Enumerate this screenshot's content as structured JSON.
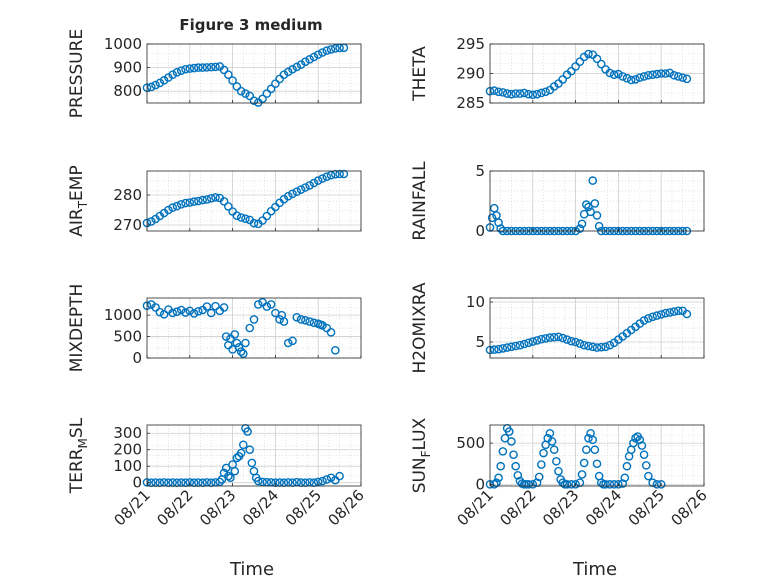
{
  "figure": {
    "title": "Figure 3 medium",
    "xlabel": "Time"
  },
  "colors": {
    "marker": "#0072BD",
    "axis": "#262626",
    "grid": "#d9d9d9",
    "background": "#ffffff"
  },
  "chart_data": [
    {
      "type": "scatter",
      "ylabel": "PRESSURE",
      "ylim": [
        750,
        1000
      ],
      "yticks": [
        800,
        900,
        1000
      ],
      "xlim": [
        "08/21",
        "08/26"
      ],
      "xticks": [
        "08/21",
        "08/22",
        "08/23",
        "08/24",
        "08/25",
        "08/26"
      ],
      "grid": true,
      "x": [
        0,
        0.1,
        0.2,
        0.3,
        0.4,
        0.5,
        0.6,
        0.7,
        0.8,
        0.9,
        1.0,
        1.1,
        1.2,
        1.3,
        1.4,
        1.5,
        1.6,
        1.7,
        1.8,
        1.9,
        2.0,
        2.1,
        2.2,
        2.3,
        2.4,
        2.5,
        2.6,
        2.7,
        2.8,
        2.9,
        3.0,
        3.1,
        3.2,
        3.3,
        3.4,
        3.5,
        3.6,
        3.7,
        3.8,
        3.9,
        4.0,
        4.1,
        4.2,
        4.3,
        4.4,
        4.5,
        4.6
      ],
      "y": [
        815,
        818,
        826,
        835,
        846,
        858,
        870,
        880,
        887,
        893,
        896,
        898,
        900,
        900,
        901,
        902,
        903,
        905,
        890,
        870,
        845,
        820,
        800,
        790,
        780,
        760,
        752,
        768,
        790,
        810,
        832,
        852,
        870,
        882,
        893,
        903,
        913,
        925,
        935,
        945,
        955,
        964,
        972,
        977,
        981,
        983,
        984
      ]
    },
    {
      "type": "scatter",
      "ylabel": "THETA",
      "ylim": [
        285,
        295
      ],
      "yticks": [
        285,
        290,
        295
      ],
      "xlim": [
        "08/21",
        "08/26"
      ],
      "xticks": [
        "08/21",
        "08/22",
        "08/23",
        "08/24",
        "08/25",
        "08/26"
      ],
      "grid": true,
      "x": [
        0,
        0.1,
        0.2,
        0.3,
        0.4,
        0.5,
        0.6,
        0.7,
        0.8,
        0.9,
        1.0,
        1.1,
        1.2,
        1.3,
        1.4,
        1.5,
        1.6,
        1.7,
        1.8,
        1.9,
        2.0,
        2.1,
        2.2,
        2.3,
        2.4,
        2.5,
        2.6,
        2.7,
        2.8,
        2.9,
        3.0,
        3.1,
        3.2,
        3.3,
        3.4,
        3.5,
        3.6,
        3.7,
        3.8,
        3.9,
        4.0,
        4.1,
        4.2,
        4.3,
        4.4,
        4.5,
        4.6
      ],
      "y": [
        287.0,
        287.1,
        286.9,
        286.8,
        286.6,
        286.5,
        286.6,
        286.6,
        286.7,
        286.5,
        286.4,
        286.5,
        286.7,
        286.9,
        287.2,
        287.8,
        288.3,
        289.0,
        289.8,
        290.4,
        291.2,
        292.0,
        292.8,
        293.3,
        293.2,
        292.5,
        291.6,
        290.7,
        290.1,
        289.8,
        289.9,
        289.5,
        289.2,
        288.9,
        289.0,
        289.3,
        289.5,
        289.7,
        289.8,
        289.9,
        290.0,
        290.0,
        290.1,
        289.7,
        289.5,
        289.3,
        289.1
      ]
    },
    {
      "type": "scatter",
      "ylabel": "AIR_TEMP",
      "ylim": [
        268,
        288
      ],
      "yticks": [
        270,
        280
      ],
      "xlim": [
        "08/21",
        "08/26"
      ],
      "xticks": [
        "08/21",
        "08/22",
        "08/23",
        "08/24",
        "08/25",
        "08/26"
      ],
      "grid": true,
      "x": [
        0,
        0.1,
        0.2,
        0.3,
        0.4,
        0.5,
        0.6,
        0.7,
        0.8,
        0.9,
        1.0,
        1.1,
        1.2,
        1.3,
        1.4,
        1.5,
        1.6,
        1.7,
        1.8,
        1.9,
        2.0,
        2.1,
        2.2,
        2.3,
        2.4,
        2.5,
        2.6,
        2.7,
        2.8,
        2.9,
        3.0,
        3.1,
        3.2,
        3.3,
        3.4,
        3.5,
        3.6,
        3.7,
        3.8,
        3.9,
        4.0,
        4.1,
        4.2,
        4.3,
        4.4,
        4.5,
        4.6
      ],
      "y": [
        270.7,
        271.2,
        272.0,
        273.0,
        274.0,
        275.0,
        275.8,
        276.3,
        276.9,
        277.3,
        277.5,
        277.8,
        278.0,
        278.3,
        278.5,
        278.9,
        279.2,
        279.0,
        277.9,
        276.2,
        274.5,
        273.1,
        272.5,
        272.1,
        271.7,
        270.6,
        270.4,
        271.5,
        273.0,
        274.6,
        276.0,
        277.4,
        278.6,
        279.6,
        280.4,
        281.1,
        281.8,
        282.5,
        283.2,
        284.0,
        284.8,
        285.5,
        286.1,
        286.6,
        286.9,
        287.0,
        287.0
      ]
    },
    {
      "type": "scatter",
      "ylabel": "RAINFALL",
      "ylim": [
        0,
        5
      ],
      "yticks": [
        0,
        5
      ],
      "xlim": [
        "08/21",
        "08/26"
      ],
      "xticks": [
        "08/21",
        "08/22",
        "08/23",
        "08/24",
        "08/25",
        "08/26"
      ],
      "grid": true,
      "x": [
        0,
        0.05,
        0.1,
        0.15,
        0.2,
        0.25,
        0.3,
        0.4,
        0.5,
        0.6,
        0.7,
        0.8,
        0.9,
        1.0,
        1.1,
        1.2,
        1.3,
        1.4,
        1.5,
        1.6,
        1.7,
        1.8,
        1.9,
        2.0,
        2.1,
        2.15,
        2.2,
        2.25,
        2.3,
        2.35,
        2.4,
        2.45,
        2.5,
        2.55,
        2.6,
        2.7,
        2.8,
        2.9,
        3.0,
        3.1,
        3.2,
        3.3,
        3.4,
        3.5,
        3.6,
        3.7,
        3.8,
        3.9,
        4.0,
        4.1,
        4.2,
        4.3,
        4.4,
        4.5,
        4.6
      ],
      "y": [
        0.3,
        1.1,
        1.9,
        1.3,
        0.7,
        0.2,
        0,
        0,
        0,
        0,
        0,
        0,
        0,
        0,
        0,
        0,
        0,
        0,
        0,
        0,
        0,
        0,
        0,
        0,
        0.2,
        0.6,
        1.4,
        2.2,
        2.0,
        1.6,
        4.2,
        2.3,
        1.3,
        0.4,
        0,
        0,
        0,
        0,
        0,
        0,
        0,
        0,
        0,
        0,
        0,
        0,
        0,
        0,
        0,
        0,
        0,
        0,
        0,
        0,
        0
      ]
    },
    {
      "type": "scatter",
      "ylabel": "MIXDEPTH",
      "ylim": [
        0,
        1400
      ],
      "yticks": [
        0,
        500,
        1000
      ],
      "xlim": [
        "08/21",
        "08/26"
      ],
      "xticks": [
        "08/21",
        "08/22",
        "08/23",
        "08/24",
        "08/25",
        "08/26"
      ],
      "grid": true,
      "x": [
        0,
        0.1,
        0.2,
        0.3,
        0.4,
        0.5,
        0.6,
        0.7,
        0.8,
        0.9,
        1.0,
        1.1,
        1.2,
        1.3,
        1.4,
        1.5,
        1.6,
        1.7,
        1.8,
        1.85,
        1.9,
        1.95,
        2.0,
        2.05,
        2.1,
        2.15,
        2.2,
        2.25,
        2.3,
        2.4,
        2.5,
        2.6,
        2.7,
        2.8,
        2.9,
        3.0,
        3.1,
        3.15,
        3.2,
        3.3,
        3.4,
        3.5,
        3.6,
        3.7,
        3.8,
        3.9,
        4.0,
        4.05,
        4.1,
        4.2,
        4.3,
        4.4
      ],
      "y": [
        1220,
        1250,
        1180,
        1070,
        1020,
        1130,
        1050,
        1080,
        1120,
        1060,
        1100,
        1040,
        1090,
        1120,
        1200,
        1050,
        1210,
        1100,
        1180,
        500,
        300,
        450,
        200,
        550,
        350,
        250,
        150,
        100,
        350,
        700,
        900,
        1250,
        1300,
        1200,
        1250,
        1050,
        900,
        1000,
        850,
        350,
        400,
        950,
        900,
        880,
        850,
        820,
        800,
        780,
        760,
        700,
        600,
        180
      ]
    },
    {
      "type": "scatter",
      "ylabel": "H2OMIXRA",
      "ylim": [
        3,
        10.5
      ],
      "yticks": [
        5,
        10
      ],
      "xlim": [
        "08/21",
        "08/26"
      ],
      "xticks": [
        "08/21",
        "08/22",
        "08/23",
        "08/24",
        "08/25",
        "08/26"
      ],
      "grid": true,
      "x": [
        0,
        0.1,
        0.2,
        0.3,
        0.4,
        0.5,
        0.6,
        0.7,
        0.8,
        0.9,
        1.0,
        1.1,
        1.2,
        1.3,
        1.4,
        1.5,
        1.6,
        1.7,
        1.8,
        1.9,
        2.0,
        2.1,
        2.2,
        2.3,
        2.4,
        2.5,
        2.6,
        2.7,
        2.8,
        2.9,
        3.0,
        3.1,
        3.2,
        3.3,
        3.4,
        3.5,
        3.6,
        3.7,
        3.8,
        3.9,
        4.0,
        4.1,
        4.2,
        4.3,
        4.4,
        4.5,
        4.6
      ],
      "y": [
        4.0,
        4.05,
        4.1,
        4.2,
        4.3,
        4.4,
        4.5,
        4.6,
        4.75,
        4.9,
        5.05,
        5.2,
        5.35,
        5.45,
        5.55,
        5.6,
        5.65,
        5.5,
        5.3,
        5.1,
        5.0,
        4.8,
        4.6,
        4.5,
        4.4,
        4.3,
        4.35,
        4.4,
        4.6,
        4.9,
        5.3,
        5.7,
        6.1,
        6.5,
        6.9,
        7.3,
        7.7,
        7.95,
        8.15,
        8.3,
        8.45,
        8.6,
        8.7,
        8.8,
        8.9,
        8.9,
        8.5
      ]
    },
    {
      "type": "scatter",
      "ylabel": "TERR_MSL",
      "ylim": [
        -20,
        350
      ],
      "yticks": [
        0,
        100,
        200,
        300
      ],
      "xlim": [
        "08/21",
        "08/26"
      ],
      "xticks": [
        "08/21",
        "08/22",
        "08/23",
        "08/24",
        "08/25",
        "08/26"
      ],
      "grid": true,
      "x": [
        0,
        0.1,
        0.2,
        0.3,
        0.4,
        0.5,
        0.6,
        0.7,
        0.8,
        0.9,
        1.0,
        1.1,
        1.2,
        1.3,
        1.4,
        1.5,
        1.6,
        1.7,
        1.75,
        1.8,
        1.85,
        1.9,
        1.95,
        2.0,
        2.05,
        2.1,
        2.15,
        2.2,
        2.25,
        2.3,
        2.35,
        2.4,
        2.45,
        2.5,
        2.55,
        2.6,
        2.7,
        2.8,
        2.9,
        3.0,
        3.1,
        3.2,
        3.3,
        3.4,
        3.5,
        3.6,
        3.7,
        3.8,
        3.9,
        4.0,
        4.1,
        4.2,
        4.3,
        4.4,
        4.5
      ],
      "y": [
        2,
        0,
        1,
        0,
        2,
        0,
        1,
        0,
        1,
        0,
        2,
        0,
        1,
        0,
        2,
        0,
        2,
        5,
        20,
        60,
        90,
        40,
        30,
        110,
        70,
        150,
        160,
        180,
        230,
        330,
        310,
        200,
        120,
        70,
        30,
        10,
        5,
        3,
        2,
        0,
        1,
        0,
        2,
        0,
        3,
        1,
        0,
        2,
        0,
        5,
        10,
        20,
        30,
        15,
        40
      ]
    },
    {
      "type": "scatter",
      "ylabel": "SUN_FLUX",
      "ylim": [
        -20,
        720
      ],
      "yticks": [
        0,
        500
      ],
      "xlim": [
        "08/21",
        "08/26"
      ],
      "xticks": [
        "08/21",
        "08/22",
        "08/23",
        "08/24",
        "08/25",
        "08/26"
      ],
      "grid": true,
      "x": [
        0,
        0.1,
        0.15,
        0.2,
        0.25,
        0.3,
        0.35,
        0.4,
        0.45,
        0.5,
        0.55,
        0.6,
        0.65,
        0.7,
        0.75,
        0.8,
        0.85,
        0.9,
        1.0,
        1.1,
        1.15,
        1.2,
        1.25,
        1.3,
        1.35,
        1.4,
        1.45,
        1.5,
        1.55,
        1.6,
        1.65,
        1.7,
        1.75,
        1.8,
        1.9,
        2.0,
        2.1,
        2.15,
        2.2,
        2.25,
        2.3,
        2.35,
        2.4,
        2.45,
        2.5,
        2.55,
        2.6,
        2.65,
        2.7,
        2.8,
        2.9,
        3.0,
        3.1,
        3.15,
        3.2,
        3.25,
        3.3,
        3.35,
        3.4,
        3.45,
        3.5,
        3.55,
        3.6,
        3.65,
        3.7,
        3.8,
        3.9,
        4.0
      ],
      "y": [
        0,
        0,
        20,
        80,
        220,
        400,
        560,
        680,
        640,
        520,
        360,
        220,
        110,
        40,
        10,
        0,
        0,
        0,
        0,
        20,
        90,
        240,
        380,
        480,
        560,
        620,
        520,
        420,
        280,
        160,
        60,
        20,
        0,
        0,
        0,
        0,
        20,
        120,
        260,
        420,
        560,
        620,
        540,
        420,
        250,
        100,
        20,
        0,
        0,
        0,
        0,
        0,
        10,
        80,
        220,
        340,
        420,
        500,
        560,
        580,
        540,
        470,
        360,
        230,
        100,
        20,
        0,
        0
      ]
    }
  ]
}
